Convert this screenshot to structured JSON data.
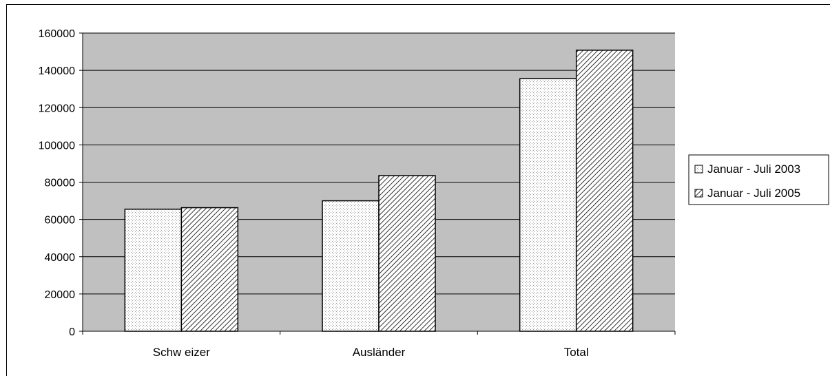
{
  "chart_data": {
    "type": "bar",
    "categories": [
      "Schw eizer",
      "Ausländer",
      "Total"
    ],
    "series": [
      {
        "name": "Januar - Juli 2003",
        "values": [
          65500,
          70000,
          135500
        ]
      },
      {
        "name": "Januar - Juli 2005",
        "values": [
          66300,
          83500,
          150800
        ]
      }
    ],
    "ylim": [
      0,
      160000
    ],
    "yticks": [
      0,
      20000,
      40000,
      60000,
      80000,
      100000,
      120000,
      140000,
      160000
    ],
    "grid": true,
    "legend_position": "right",
    "colors": {
      "plot_background": "#c0c0c0",
      "bar_fill": "#ffffff",
      "outline": "#000000"
    }
  }
}
